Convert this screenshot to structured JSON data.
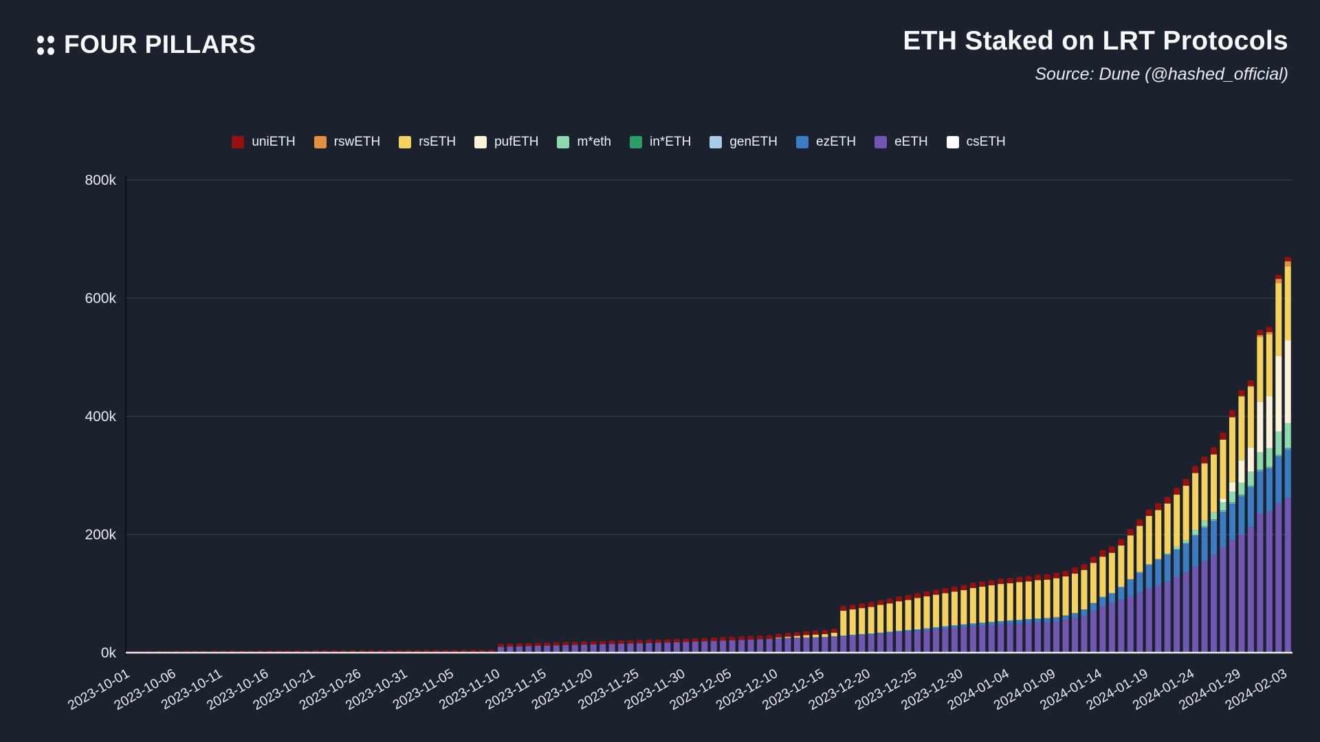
{
  "header": {
    "logo_text": "FOUR PILLARS",
    "title": "ETH Staked on LRT Protocols",
    "source": "Source: Dune (@hashed_official)"
  },
  "chart_data": {
    "type": "bar",
    "stacked": true,
    "title": "ETH Staked on LRT Protocols",
    "xlabel": "",
    "ylabel": "",
    "values_unit": "thousands of ETH",
    "ylim_k": [
      0,
      800
    ],
    "y_tick_labels": [
      "0k",
      "200k",
      "400k",
      "600k",
      "800k"
    ],
    "grid": true,
    "legend_position": "top",
    "bar_granularity": "daily",
    "date_range": [
      "2023-10-01",
      "2024-02-03"
    ],
    "x_tick_labels": [
      "2023-10-01",
      "2023-10-06",
      "2023-10-11",
      "2023-10-16",
      "2023-10-21",
      "2023-10-26",
      "2023-10-31",
      "2023-11-05",
      "2023-11-10",
      "2023-11-15",
      "2023-11-20",
      "2023-11-25",
      "2023-11-30",
      "2023-12-05",
      "2023-12-10",
      "2023-12-15",
      "2023-12-20",
      "2023-12-25",
      "2023-12-30",
      "2024-01-04",
      "2024-01-09",
      "2024-01-14",
      "2024-01-19",
      "2024-01-24",
      "2024-01-29",
      "2024-02-03"
    ],
    "x_tick_every_days": 5,
    "stack_order_bottom_to_top": [
      "csETH",
      "eETH",
      "ezETH",
      "genETH",
      "in*ETH",
      "m*eth",
      "pufETH",
      "rsETH",
      "rswETH",
      "uniETH"
    ],
    "series": [
      {
        "name": "uniETH",
        "color": "#980f0f",
        "values": [
          2.5,
          2.6,
          2.7,
          2.7,
          2.8,
          2.9,
          3,
          3,
          3.1,
          3.2,
          3.2,
          3.3,
          3.4,
          3.4,
          3.5,
          3.6,
          3.6,
          3.7,
          3.8,
          3.8,
          3.9,
          4,
          4,
          4.1,
          4.1,
          4.2,
          4.2,
          4.3,
          4.3,
          4.4,
          4.5,
          4.6,
          4.6,
          4.7,
          4.7,
          4.8,
          4.8,
          4.9,
          4.9,
          5,
          5,
          5,
          5.1,
          5.1,
          5.1,
          5.2,
          5.2,
          5.2,
          5.3,
          5.3,
          5.3,
          5.4,
          5.4,
          5.4,
          5.4,
          5.5,
          5.5,
          5.5,
          5.5,
          5.5,
          5.5,
          5.6,
          5.7,
          5.8,
          5.9,
          6,
          6,
          6.1,
          6.2,
          6.2,
          6.3,
          6.4,
          6.5,
          6.6,
          6.7,
          6.8,
          7,
          8,
          8,
          8,
          8.2,
          8.2,
          8.3,
          8.3,
          8.4,
          8.4,
          8.5,
          8.5,
          8.6,
          8.7,
          8.8,
          9,
          9,
          9,
          9.1,
          9.1,
          9.2,
          9.3,
          9.3,
          9.4,
          9.5,
          9.6,
          10,
          10.2,
          10.5,
          11,
          11,
          11,
          11,
          11,
          11,
          11.5,
          11.5,
          11.5,
          11.5,
          12,
          11.5,
          12,
          12,
          12,
          10,
          9.5,
          9,
          9,
          7,
          7
        ]
      },
      {
        "name": "rswETH",
        "color": "#e2923e",
        "values": [
          0,
          0,
          0,
          0,
          0,
          0,
          0,
          0,
          0,
          0,
          0,
          0,
          0,
          0,
          0,
          0,
          0,
          0,
          0,
          0,
          0,
          0,
          0,
          0,
          0,
          0,
          0,
          0,
          0,
          0,
          0,
          0,
          0,
          0,
          0,
          0,
          0,
          0,
          0,
          0,
          0,
          0,
          0,
          0,
          0,
          0,
          0,
          0,
          0,
          0,
          0,
          0,
          0,
          0,
          0,
          0,
          0,
          0,
          0,
          0,
          0,
          0,
          0,
          0,
          0,
          0,
          0,
          0,
          0,
          0,
          0,
          0,
          0,
          0,
          0,
          0,
          0,
          0,
          0,
          0,
          0,
          0,
          0,
          0,
          0,
          0,
          0,
          0,
          0,
          0,
          0,
          0,
          0,
          0,
          0,
          0,
          0,
          0,
          0,
          0,
          0,
          0,
          0,
          0,
          0,
          0,
          0,
          0,
          0,
          0,
          0,
          0,
          0,
          0,
          0,
          0,
          0,
          0,
          0,
          0,
          1,
          2,
          3,
          4,
          7,
          9
        ]
      },
      {
        "name": "rsETH",
        "color": "#f5d15f",
        "values": [
          0,
          0,
          0,
          0,
          0,
          0,
          0,
          0,
          0,
          0,
          0,
          0,
          0,
          0,
          0,
          0,
          0,
          0,
          0,
          0,
          0,
          0,
          0,
          0,
          0,
          0,
          0,
          0,
          0,
          0,
          0,
          0,
          0,
          0,
          0,
          0,
          0,
          0,
          0,
          0,
          0,
          0,
          0,
          0,
          0,
          0,
          0,
          0,
          0,
          0,
          0,
          0,
          0,
          0,
          0,
          0,
          0,
          0,
          0,
          0,
          0,
          0,
          0,
          0,
          0,
          0,
          0,
          0,
          0,
          0,
          1,
          2,
          3,
          4,
          4.5,
          5,
          6,
          42,
          43,
          44,
          45,
          47,
          48,
          50,
          51,
          53,
          54,
          55,
          56,
          57,
          58,
          60,
          61,
          62,
          63,
          63,
          64,
          64,
          65,
          65,
          66,
          66,
          67,
          67,
          68,
          68,
          68,
          70,
          74,
          78,
          82,
          83,
          84,
          88,
          92,
          96,
          97,
          98,
          100,
          110,
          108,
          103,
          110,
          104,
          123,
          125
        ]
      },
      {
        "name": "pufETH",
        "color": "#fbf2d7",
        "values": [
          0,
          0,
          0,
          0,
          0,
          0,
          0,
          0,
          0,
          0,
          0,
          0,
          0,
          0,
          0,
          0,
          0,
          0,
          0,
          0,
          0,
          0,
          0,
          0,
          0,
          0,
          0,
          0,
          0,
          0,
          0,
          0,
          0,
          0,
          0,
          0,
          0,
          0,
          0,
          0,
          0,
          0,
          0,
          0,
          0,
          0,
          0,
          0,
          0,
          0,
          0,
          0,
          0,
          0,
          0,
          0,
          0,
          0,
          0,
          0,
          0,
          0,
          0,
          0,
          0,
          0,
          0,
          0,
          0,
          0,
          0,
          0,
          0,
          0,
          0,
          0,
          0,
          0,
          0,
          0,
          0,
          0,
          0,
          0,
          0,
          0,
          0,
          0,
          0,
          0,
          0,
          0,
          0,
          0,
          0,
          0,
          0,
          0,
          0,
          0,
          0,
          0,
          0,
          0,
          0,
          0,
          0,
          0,
          0,
          0,
          0,
          0,
          0,
          0,
          0,
          0,
          0,
          0,
          6,
          16,
          38,
          40,
          85,
          88,
          128,
          140
        ]
      },
      {
        "name": "m*eth",
        "color": "#90d9ae",
        "values": [
          0,
          0,
          0,
          0,
          0,
          0,
          0,
          0,
          0,
          0,
          0,
          0,
          0,
          0,
          0,
          0,
          0,
          0,
          0,
          0,
          0,
          0,
          0,
          0,
          0,
          0,
          0,
          0,
          0,
          0,
          0,
          0,
          0,
          0,
          0,
          0,
          0,
          0,
          0,
          0,
          0,
          0,
          0,
          0,
          0,
          0,
          0,
          0,
          0,
          0,
          0,
          0,
          0,
          0,
          0,
          0,
          0,
          0,
          0,
          0,
          0,
          0,
          0,
          0,
          0,
          0,
          0,
          0,
          0,
          0,
          0,
          0,
          0,
          0,
          0,
          0,
          0,
          0,
          0,
          0,
          0,
          0,
          0,
          0,
          0,
          0,
          0,
          0,
          0,
          0,
          0,
          0,
          0,
          0,
          0,
          0,
          0,
          0,
          0,
          0,
          0,
          0,
          0,
          0,
          0,
          0,
          0,
          0,
          0,
          0,
          0,
          0,
          2,
          4,
          5,
          8,
          10,
          12,
          14,
          18,
          20,
          24,
          30,
          32,
          40,
          42
        ]
      },
      {
        "name": "in*ETH",
        "color": "#2e9e66",
        "values": [
          0,
          0,
          0,
          0,
          0,
          0,
          0,
          0,
          0,
          0,
          0,
          0,
          0,
          0,
          0,
          0,
          0,
          0,
          0,
          0,
          0,
          0,
          0,
          0,
          0,
          0,
          0,
          0,
          0,
          0,
          0,
          0,
          0,
          0,
          0,
          0,
          0,
          0,
          0,
          0,
          0,
          0,
          0,
          0,
          0,
          0,
          0,
          0,
          0,
          0,
          0,
          0,
          0,
          0,
          0,
          0,
          0,
          0,
          0,
          0,
          0,
          0,
          0,
          0,
          0,
          0,
          0,
          0,
          0,
          0,
          0,
          0,
          0,
          0,
          0,
          0,
          0,
          0,
          0,
          0,
          0,
          0,
          0,
          0,
          0,
          0,
          0,
          0,
          0,
          0,
          0,
          0,
          0,
          0,
          0,
          0,
          0,
          0,
          0,
          0,
          0.5,
          0.5,
          0.5,
          0.5,
          0.5,
          0.5,
          0.5,
          0.5,
          0.5,
          0.5,
          0.5,
          0.5,
          0.5,
          0.5,
          0.5,
          0.5,
          1,
          1,
          1,
          1,
          1,
          1,
          1,
          1,
          1,
          1
        ]
      },
      {
        "name": "genETH",
        "color": "#a9cce8",
        "values": [
          0,
          0,
          0,
          0,
          0,
          0,
          0,
          0,
          0,
          0,
          0,
          0,
          0,
          0,
          0,
          0,
          0,
          0,
          0,
          0,
          0,
          0,
          0,
          0,
          0,
          0,
          0,
          0,
          0,
          0,
          0,
          0,
          0,
          0,
          0,
          0,
          0,
          0,
          0,
          0,
          0,
          0,
          0,
          0,
          0,
          0,
          0,
          0,
          0,
          0,
          0,
          0,
          0,
          0,
          0,
          0,
          0,
          0,
          0,
          0,
          0,
          0,
          0,
          0,
          0,
          0,
          0,
          0,
          0,
          0,
          0,
          0,
          0,
          0,
          0,
          0,
          0,
          0,
          0,
          0,
          0,
          0,
          0,
          0,
          0,
          0,
          0,
          0,
          0,
          0,
          0,
          0,
          0,
          0,
          0,
          0,
          0,
          0,
          0,
          0,
          0,
          0,
          0,
          0,
          0,
          0.5,
          0.5,
          0.5,
          0.5,
          0.5,
          0.5,
          0.5,
          0.5,
          0.5,
          0.5,
          1,
          1,
          1,
          1,
          1,
          1,
          1,
          1,
          1,
          1,
          1
        ]
      },
      {
        "name": "ezETH",
        "color": "#3b7cc2",
        "values": [
          0,
          0,
          0,
          0,
          0,
          0,
          0,
          0,
          0,
          0,
          0,
          0,
          0,
          0,
          0,
          0,
          0,
          0,
          0,
          0,
          0,
          0,
          0,
          0,
          0,
          0,
          0,
          0,
          0,
          0,
          0,
          0,
          0,
          0,
          0,
          0,
          0,
          0,
          0,
          0,
          0,
          0,
          0,
          0,
          0,
          0,
          0,
          0,
          0,
          0,
          0,
          0,
          0,
          0,
          0,
          0,
          0,
          0,
          0,
          0,
          0,
          0,
          0,
          0,
          0,
          0,
          0,
          0,
          0,
          0,
          0.3,
          0.4,
          0.5,
          0.6,
          0.8,
          1,
          1.2,
          1.5,
          1.8,
          2,
          2,
          2.2,
          2.5,
          2.8,
          3,
          3,
          3.5,
          4,
          4.2,
          4.5,
          4.8,
          5,
          5.2,
          5.5,
          5.8,
          6,
          6,
          6.2,
          6.5,
          6.8,
          7,
          7,
          8,
          10,
          13,
          15,
          16.5,
          22,
          28,
          34,
          40,
          43,
          45,
          46,
          48,
          53,
          56,
          58,
          60,
          62,
          65,
          68,
          72,
          74,
          80,
          82
        ]
      },
      {
        "name": "eETH",
        "color": "#7156b2",
        "values": [
          0,
          0,
          0,
          0,
          0,
          0,
          0,
          0,
          0,
          0,
          0,
          0,
          0,
          0,
          0,
          0,
          0,
          0,
          0,
          0,
          0,
          0,
          0,
          0,
          0,
          0,
          0,
          0,
          0,
          0,
          0,
          0,
          0,
          0,
          0,
          0,
          0,
          0,
          0,
          0,
          10,
          10.4,
          10.8,
          11.2,
          11.6,
          12,
          12.4,
          12.8,
          13.2,
          13.6,
          14,
          14.4,
          14.8,
          15.2,
          15.6,
          16,
          16.4,
          16.8,
          17.2,
          17.6,
          18,
          18.6,
          19.2,
          19.8,
          20.4,
          21,
          21.6,
          22.2,
          22.8,
          23.4,
          24,
          24.2,
          24.4,
          24.6,
          24.8,
          25,
          26,
          27,
          28,
          29,
          30,
          31.2,
          32.4,
          33.6,
          34.8,
          36,
          37.3,
          38.6,
          40,
          41.3,
          42.6,
          44,
          45,
          46,
          47,
          48,
          49,
          50,
          50.7,
          51.3,
          52,
          55,
          58,
          62,
          70,
          78,
          83,
          88,
          95,
          101,
          108,
          114,
          120,
          128,
          136,
          145,
          155,
          165,
          178,
          190,
          200,
          212,
          235,
          238,
          252,
          262
        ]
      },
      {
        "name": "csETH",
        "color": "#ffffff",
        "values": [
          0,
          0,
          0,
          0,
          0,
          0,
          0,
          0,
          0,
          0,
          0,
          0,
          0,
          0,
          0,
          0,
          0,
          0,
          0,
          0,
          0,
          0,
          0,
          0,
          0,
          0,
          0,
          0,
          0,
          0,
          0,
          0,
          0,
          0,
          0,
          0,
          0,
          0,
          0,
          0,
          0,
          0,
          0,
          0,
          0,
          0,
          0,
          0,
          0,
          0,
          0,
          0,
          0,
          0,
          0,
          0,
          0,
          0,
          0,
          0,
          0,
          0,
          0,
          0,
          0,
          0,
          0,
          0,
          0,
          0,
          0.5,
          0.5,
          0.5,
          0.5,
          0.5,
          0.5,
          0.5,
          0.5,
          0.5,
          0.5,
          0.5,
          0.5,
          0.5,
          0.5,
          0.5,
          0.5,
          0.5,
          0.5,
          0.5,
          0.5,
          0.5,
          0.5,
          0.5,
          0.5,
          0.5,
          0.5,
          0.5,
          0.5,
          0.5,
          0.5,
          0.5,
          0.5,
          0.5,
          0.5,
          0.5,
          0.5,
          0.5,
          0.5,
          0.5,
          0.5,
          0.5,
          0.5,
          0.5,
          0.5,
          0.5,
          0.5,
          0.5,
          0.5,
          0.5,
          0.5,
          0.5,
          0.5,
          0.5,
          0.5,
          0.5,
          0.5
        ]
      }
    ]
  }
}
